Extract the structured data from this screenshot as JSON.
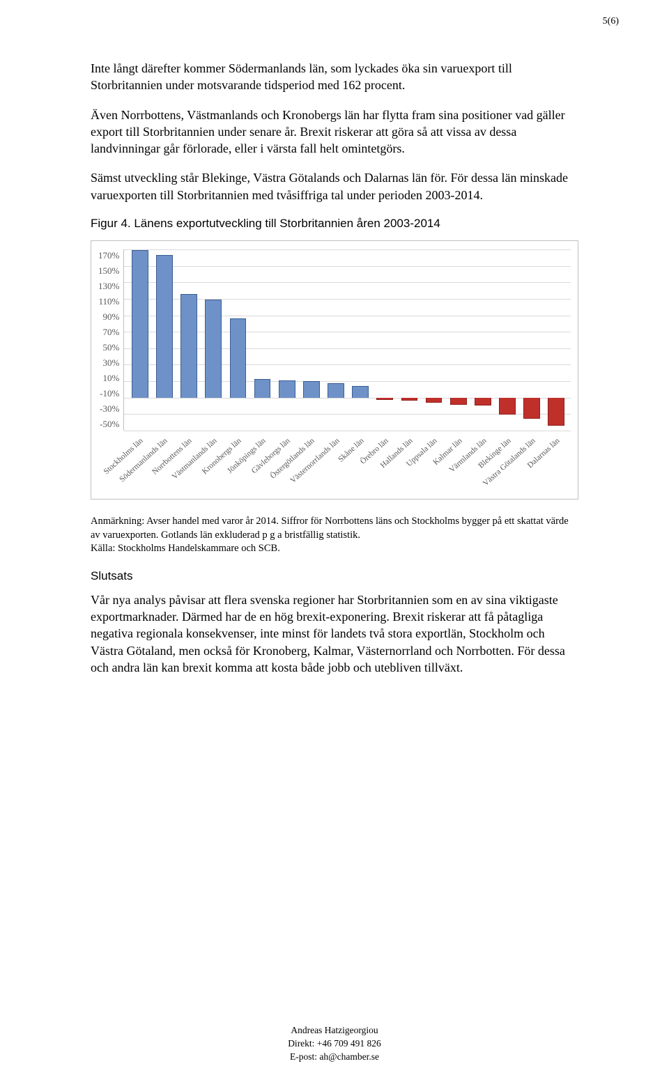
{
  "page_number": "5(6)",
  "paragraphs": {
    "p1": "Inte långt därefter kommer Södermanlands län, som lyckades öka sin varuexport till Storbritannien under motsvarande tidsperiod med 162 procent.",
    "p2": "Även Norrbottens, Västmanlands och Kronobergs län har flytta fram sina positioner vad gäller export till Storbritannien under senare år. Brexit riskerar att göra så att vissa av dessa landvinningar går förlorade, eller i värsta fall helt omintetgörs.",
    "p3": "Sämst utveckling står Blekinge, Västra Götalands och Dalarnas län för. För dessa län minskade varuexporten till Storbritannien med tvåsiffriga tal under perioden 2003-2014."
  },
  "figure_caption": "Figur 4. Länens exportutveckling till Storbritannien åren 2003-2014",
  "chart": {
    "type": "bar",
    "y_ticks": [
      "170%",
      "150%",
      "130%",
      "110%",
      "90%",
      "70%",
      "50%",
      "30%",
      "10%",
      "-10%",
      "-30%",
      "-50%"
    ],
    "y_min": -50,
    "y_max": 170,
    "zero_line": -10,
    "grid_color": "#d9d9d9",
    "categories": [
      "Stockholms län",
      "Södermanlands län",
      "Norrbottens län",
      "Västmanlands län",
      "Kronobergs län",
      "Jönköpings län",
      "Gävleborgs län",
      "Östergötlands län",
      "Västernorrlands län",
      "Skåne län",
      "Örebro län",
      "Hallands län",
      "Uppsala län",
      "Kalmar län",
      "Värmlands län",
      "Blekinge län",
      "Västra Götalands län",
      "Dalarnas län"
    ],
    "values": [
      168,
      162,
      115,
      108,
      85,
      12,
      10,
      9,
      7,
      3,
      -12,
      -13,
      -15,
      -18,
      -19,
      -30,
      -35,
      -43
    ],
    "pos_color": "#6e92c8",
    "neg_color": "#c0302b",
    "pos_border": "#3b5d93",
    "neg_border": "#8c201c"
  },
  "note_lines": {
    "n1": "Anmärkning: Avser handel med varor år 2014. Siffror för Norrbottens läns och Stockholms bygger på ett skattat värde av varuexporten. Gotlands län exkluderad p g a bristfällig statistik.",
    "n2": "Källa: Stockholms Handelskammare och SCB."
  },
  "conclusion_heading": "Slutsats",
  "conclusion_body": "Vår nya analys påvisar att flera svenska regioner har Storbritannien som en av sina viktigaste exportmarknader. Därmed har de en hög brexit-exponering. Brexit riskerar att få påtagliga negativa regionala konsekvenser, inte minst för landets två stora exportlän, Stockholm och Västra Götaland, men också för Kronoberg, Kalmar, Västernorrland och Norrbotten. För dessa och andra län kan brexit komma att kosta både jobb och utebliven tillväxt.",
  "footer": {
    "name": "Andreas Hatzigeorgiou",
    "phone": "Direkt:  +46 709 491 826",
    "email": "E-post:  ah@chamber.se"
  }
}
